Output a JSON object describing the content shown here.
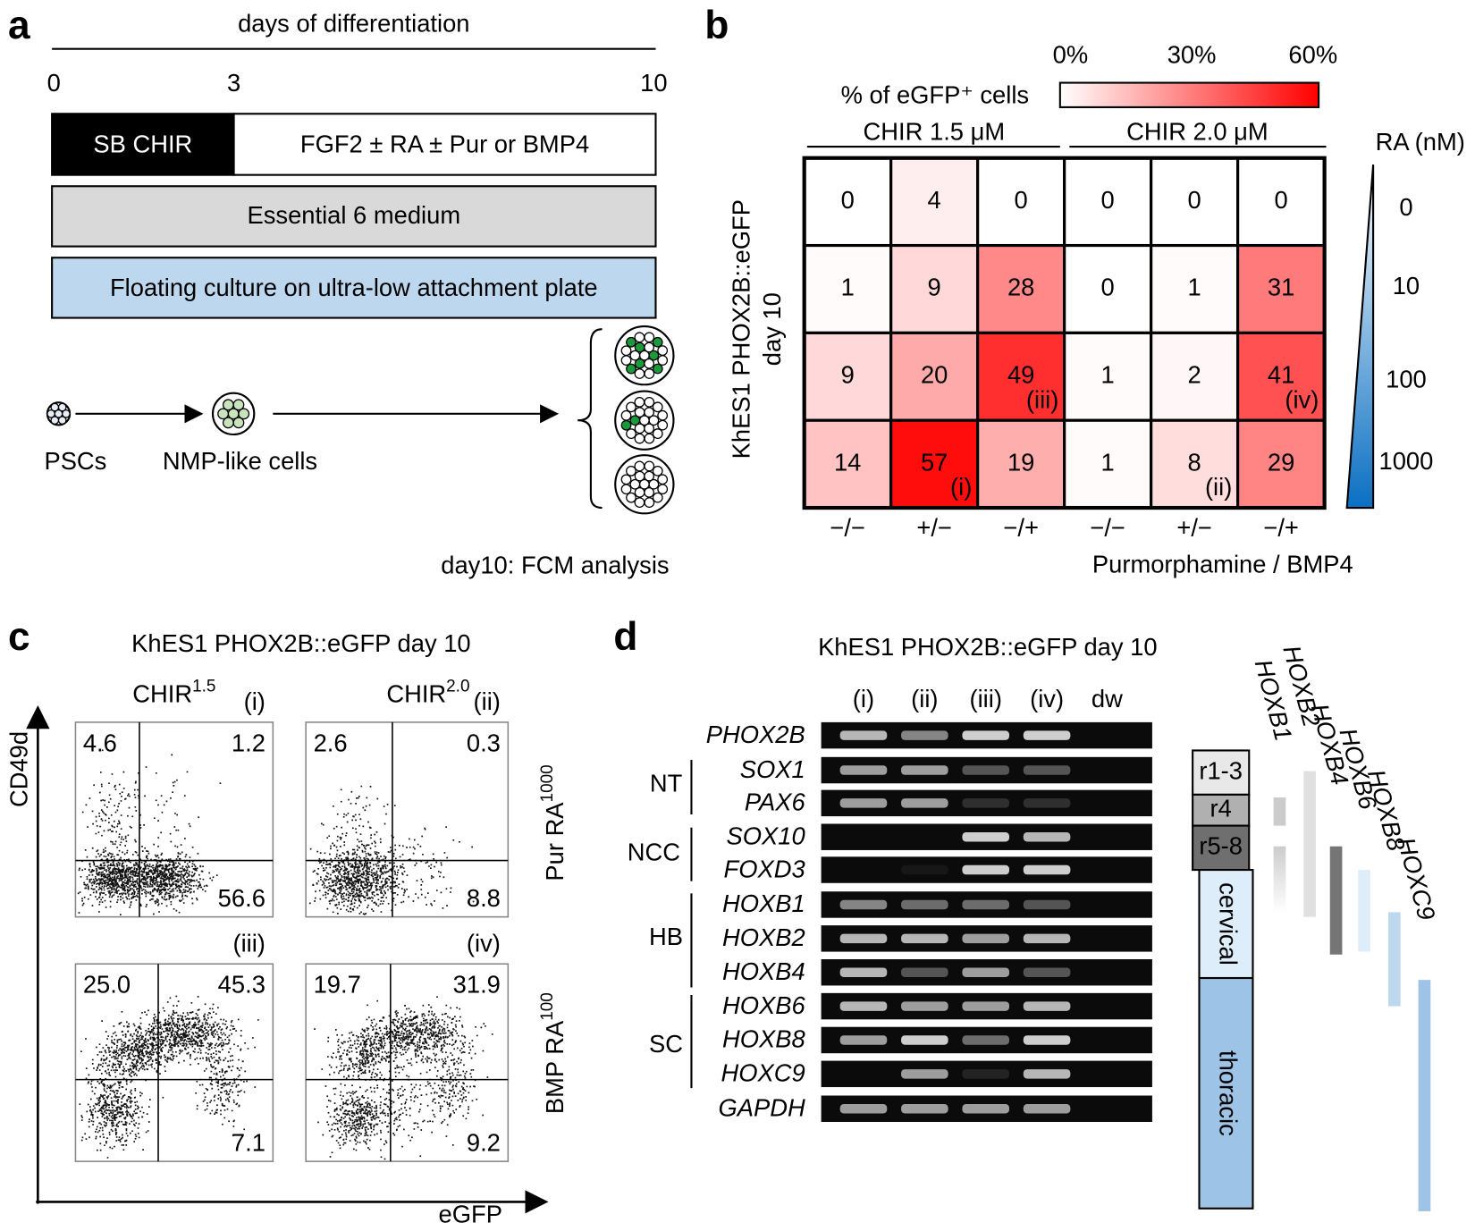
{
  "panel_a": {
    "label": "a",
    "axis_title": "days of differentiation",
    "ticks": [
      0,
      3,
      10
    ],
    "steps": [
      "SB CHIR",
      "FGF2 ± RA ± Pur or BMP4",
      "Essential 6 medium",
      "Floating culture on ultra-low attachment plate"
    ],
    "cells": [
      "PSCs",
      "NMP-like cells"
    ],
    "note": "day10: FCM analysis"
  },
  "panel_b": {
    "label": "b",
    "colorbar_title": "% of eGFP⁺ cells",
    "colorbar_ticks": [
      {
        "value": 0,
        "label": "0%"
      },
      {
        "value": 30,
        "label": "30%"
      },
      {
        "value": 60,
        "label": "60%"
      }
    ],
    "groups": [
      "CHIR 1.5 μM",
      "CHIR 2.0 μM"
    ],
    "y_title": [
      "KhES1 PHOX2B::eGFP",
      "day 10"
    ],
    "ra_title": "RA (nM)",
    "ra_levels": [
      "0",
      "10",
      "100",
      "1000"
    ],
    "columns": [
      "−/−",
      "+/−",
      "−/+",
      "−/−",
      "+/−",
      "−/+"
    ],
    "x_title": "Purmorphamine / BMP4",
    "values": [
      [
        0,
        4,
        0,
        0,
        0,
        0
      ],
      [
        1,
        9,
        28,
        0,
        1,
        31
      ],
      [
        9,
        20,
        49,
        1,
        2,
        41
      ],
      [
        14,
        57,
        19,
        1,
        8,
        29
      ]
    ],
    "annotations": [
      {
        "cell": [
          3,
          1
        ],
        "text": "(i)"
      },
      {
        "cell": [
          3,
          4
        ],
        "text": "(ii)"
      },
      {
        "cell": [
          2,
          2
        ],
        "text": "(iii)"
      },
      {
        "cell": [
          2,
          5
        ],
        "text": "(iv)"
      }
    ]
  },
  "panel_c": {
    "label": "c",
    "title": "KhES1 PHOX2B::eGFP day 10",
    "y_title": "CD49d",
    "x_title": "eGFP",
    "column_headers": [
      {
        "text": "CHIR",
        "sup": "1.5"
      },
      {
        "text": "CHIR",
        "sup": "2.0"
      }
    ],
    "row_labels": [
      {
        "text": "Pur RA",
        "sup": "1000"
      },
      {
        "text": "BMP RA",
        "sup": "100"
      }
    ],
    "plots": [
      {
        "tag": "(i)",
        "ul": "4.6",
        "ur": "1.2",
        "lr": "56.6"
      },
      {
        "tag": "(ii)",
        "ul": "2.6",
        "ur": "0.3",
        "lr": "8.8"
      },
      {
        "tag": "(iii)",
        "ul": "25.0",
        "ur": "45.3",
        "lr": "7.1"
      },
      {
        "tag": "(iv)",
        "ul": "19.7",
        "ur": "31.9",
        "lr": "9.2"
      }
    ]
  },
  "panel_d": {
    "label": "d",
    "title": "KhES1 PHOX2B::eGFP day 10",
    "lanes": [
      "(i)",
      "(ii)",
      "(iii)",
      "(iv)",
      "dw"
    ],
    "groups": [
      "NT",
      "NCC",
      "HB",
      "SC"
    ],
    "genes": [
      {
        "name": "PHOX2B",
        "bands": [
          0.7,
          0.5,
          0.8,
          0.8,
          0
        ]
      },
      {
        "name": "SOX1",
        "bands": [
          0.6,
          0.6,
          0.3,
          0.3,
          0
        ]
      },
      {
        "name": "PAX6",
        "bands": [
          0.6,
          0.6,
          0.15,
          0.15,
          0
        ]
      },
      {
        "name": "SOX10",
        "bands": [
          0,
          0,
          0.8,
          0.7,
          0
        ]
      },
      {
        "name": "FOXD3",
        "bands": [
          0,
          0.05,
          0.8,
          0.8,
          0
        ]
      },
      {
        "name": "HOXB1",
        "bands": [
          0.5,
          0.4,
          0.4,
          0.3,
          0
        ]
      },
      {
        "name": "HOXB2",
        "bands": [
          0.7,
          0.7,
          0.6,
          0.7,
          0
        ]
      },
      {
        "name": "HOXB4",
        "bands": [
          0.7,
          0.3,
          0.6,
          0.3,
          0
        ]
      },
      {
        "name": "HOXB6",
        "bands": [
          0.7,
          0.6,
          0.6,
          0.7,
          0
        ]
      },
      {
        "name": "HOXB8",
        "bands": [
          0.6,
          0.8,
          0.4,
          0.8,
          0
        ]
      },
      {
        "name": "HOXC9",
        "bands": [
          0,
          0.6,
          0.1,
          0.7,
          0
        ]
      },
      {
        "name": "GAPDH",
        "bands": [
          0.6,
          0.6,
          0.6,
          0.6,
          0
        ]
      }
    ],
    "regions": [
      "r1-3",
      "r4",
      "r5-8",
      "cervical",
      "thoracic"
    ],
    "hox_genes": [
      "HOXB1",
      "HOXB2",
      "HOXB4",
      "HOXB6",
      "HOXB8",
      "HOXC9"
    ]
  }
}
